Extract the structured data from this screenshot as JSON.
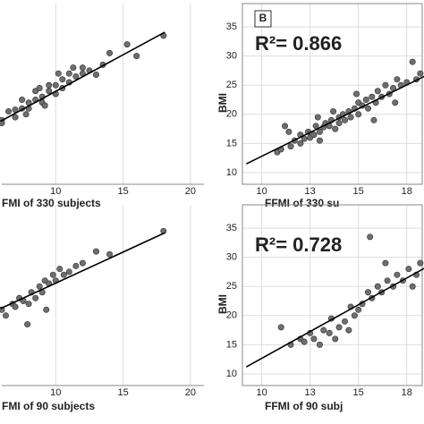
{
  "chart_data": [
    {
      "type": "scatter",
      "x_label": "FMI of 330 subjects",
      "xlim": [
        6,
        21
      ],
      "ylim": [
        8,
        39
      ],
      "xticks": [
        10,
        15,
        20
      ],
      "x": [
        6,
        6,
        6.5,
        7,
        7,
        7.5,
        7.5,
        8,
        8,
        8.5,
        8.5,
        9,
        9,
        9.5,
        9.5,
        10,
        10,
        10.5,
        10.5,
        11,
        11,
        11.5,
        12,
        12,
        12.5,
        13,
        13.5,
        14,
        15.3,
        16,
        18,
        7.8,
        8.8,
        9.2,
        10.2,
        11.3
      ],
      "y": [
        19,
        18.5,
        20.5,
        20.8,
        19.5,
        21,
        22.5,
        22,
        21,
        22.5,
        24,
        23,
        22,
        24,
        25,
        25,
        23.5,
        26,
        24.5,
        25.5,
        27,
        26.5,
        27,
        28,
        27.5,
        26.8,
        28.5,
        30.5,
        32,
        30,
        33.5,
        20,
        24.5,
        21.5,
        27,
        28
      ],
      "fit": {
        "x": [
          5.9,
          18.1
        ],
        "y": [
          18.8,
          34.1
        ]
      }
    },
    {
      "type": "scatter",
      "x_label": "FFMI of 330 su",
      "y_label": "BMI",
      "panel_tag": "B",
      "annotation": "R²= 0.866",
      "xlim": [
        9,
        18.3
      ],
      "ylim": [
        8,
        39
      ],
      "xticks": [
        10,
        {
          "value": 12.5,
          "label": "13"
        },
        15,
        {
          "value": 17.5,
          "label": "18"
        }
      ],
      "yticks": [
        10,
        15,
        20,
        25,
        30,
        35
      ],
      "x": [
        10.8,
        11,
        11.2,
        11.5,
        11.7,
        12,
        12,
        12.2,
        12.4,
        12.5,
        12.7,
        12.8,
        13,
        13,
        13.2,
        13.3,
        13.5,
        13.6,
        13.8,
        14,
        14,
        14.2,
        14.3,
        14.5,
        14.6,
        14.8,
        15,
        15,
        15.2,
        15.4,
        15.5,
        15.7,
        15.9,
        16,
        16.2,
        16.4,
        16.6,
        16.8,
        17,
        17.2,
        17.5,
        17.8,
        18,
        18.2,
        11.4,
        12.9,
        13.7,
        14.9,
        15.8,
        16.9
      ],
      "y": [
        13.5,
        14,
        18,
        14.5,
        15.5,
        15,
        16.5,
        15.8,
        17,
        16,
        16.5,
        18,
        17,
        15.5,
        17.8,
        18.5,
        18,
        19,
        17.5,
        19.5,
        18.5,
        20,
        19,
        20.5,
        19.5,
        21,
        20,
        22,
        21.5,
        22.5,
        21,
        23,
        22,
        24,
        23,
        25,
        23.5,
        24.5,
        26,
        25,
        25.5,
        29,
        26,
        27,
        17,
        19.5,
        20.5,
        23.5,
        19,
        22
      ],
      "fit": {
        "x": [
          9.2,
          18.4
        ],
        "y": [
          11.5,
          26.5
        ]
      }
    },
    {
      "type": "scatter",
      "x_label": "FMI of 90 subjects",
      "xlim": [
        6,
        21
      ],
      "ylim": [
        8,
        39
      ],
      "xticks": [
        10,
        15,
        20
      ],
      "x": [
        6,
        6.3,
        6.8,
        7,
        7.3,
        7.6,
        8,
        8.2,
        8.5,
        8.8,
        9,
        9.2,
        9.5,
        9.8,
        10,
        10.3,
        10.6,
        11,
        11.5,
        12,
        13,
        14,
        18,
        7.9,
        9.3
      ],
      "y": [
        21,
        20,
        22,
        21.5,
        23,
        22.5,
        22,
        24,
        23,
        25,
        24,
        26,
        25.5,
        27,
        26,
        28,
        27,
        27.5,
        28.5,
        29,
        31,
        30.5,
        34.5,
        18.5,
        21
      ],
      "fit": {
        "x": [
          5.9,
          18.1
        ],
        "y": [
          21.2,
          34.2
        ]
      }
    },
    {
      "type": "scatter",
      "x_label": "FFMI of 90 subj",
      "y_label": "BMI",
      "annotation": "R²= 0.728",
      "xlim": [
        9,
        18.3
      ],
      "ylim": [
        8,
        39
      ],
      "xticks": [
        10,
        {
          "value": 12.5,
          "label": "13"
        },
        15,
        {
          "value": 17.5,
          "label": "18"
        }
      ],
      "yticks": [
        10,
        15,
        20,
        25,
        30,
        35
      ],
      "x": [
        11,
        11.5,
        12,
        12.2,
        12.5,
        12.7,
        13,
        13.2,
        13.5,
        13.8,
        14,
        14.3,
        14.5,
        14.8,
        15,
        15.2,
        15.5,
        15.7,
        16,
        16.2,
        16.5,
        16.8,
        17,
        17.3,
        17.6,
        18,
        18.2,
        15.6,
        16.4,
        13.6,
        14.6,
        17.8
      ],
      "y": [
        18,
        15,
        16,
        15.5,
        17,
        16,
        15,
        17.5,
        17,
        16,
        18,
        19,
        17.5,
        20,
        21,
        22,
        24,
        23,
        25,
        24,
        26,
        25,
        27,
        26,
        28,
        27,
        29,
        33.5,
        29,
        19.5,
        21.5,
        25
      ],
      "fit": {
        "x": [
          9.2,
          18.4
        ],
        "y": [
          11.2,
          28.1
        ]
      }
    }
  ]
}
